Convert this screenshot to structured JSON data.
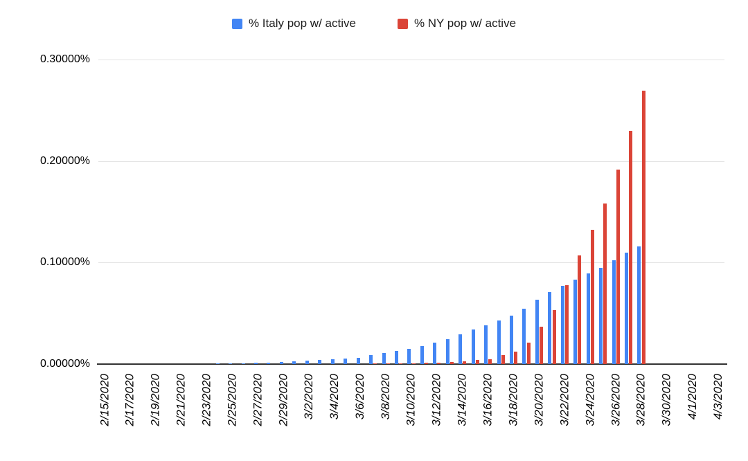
{
  "legend": [
    {
      "label": "% Italy pop w/ active",
      "color": "#4285F4"
    },
    {
      "label": "% NY pop w/ active",
      "color": "#DB4437"
    }
  ],
  "chart_data": {
    "type": "bar",
    "title": "",
    "xlabel": "",
    "ylabel": "",
    "grid": true,
    "legend_position": "top",
    "ylim": [
      0,
      0.3
    ],
    "y_ticks": [
      "0.00000%",
      "0.10000%",
      "0.20000%",
      "0.30000%"
    ],
    "x_label_every": 2,
    "categories": [
      "2/15/2020",
      "2/16/2020",
      "2/17/2020",
      "2/18/2020",
      "2/19/2020",
      "2/20/2020",
      "2/21/2020",
      "2/22/2020",
      "2/23/2020",
      "2/24/2020",
      "2/25/2020",
      "2/26/2020",
      "2/27/2020",
      "2/28/2020",
      "2/29/2020",
      "3/1/2020",
      "3/2/2020",
      "3/3/2020",
      "3/4/2020",
      "3/5/2020",
      "3/6/2020",
      "3/7/2020",
      "3/8/2020",
      "3/9/2020",
      "3/10/2020",
      "3/11/2020",
      "3/12/2020",
      "3/13/2020",
      "3/14/2020",
      "3/15/2020",
      "3/16/2020",
      "3/17/2020",
      "3/18/2020",
      "3/19/2020",
      "3/20/2020",
      "3/21/2020",
      "3/22/2020",
      "3/23/2020",
      "3/24/2020",
      "3/25/2020",
      "3/26/2020",
      "3/27/2020",
      "3/28/2020",
      "3/29/2020",
      "3/30/2020",
      "3/31/2020",
      "4/1/2020",
      "4/2/2020",
      "4/3/2020"
    ],
    "series": [
      {
        "name": "% Italy pop w/ active",
        "color": "#4285F4",
        "values": [
          1e-05,
          1e-05,
          1e-05,
          1e-05,
          1e-05,
          1e-05,
          3e-05,
          0.00013,
          0.00025,
          0.00037,
          0.00051,
          0.00066,
          0.00107,
          0.00146,
          0.00182,
          0.00275,
          0.0033,
          0.00411,
          0.00459,
          0.00577,
          0.00644,
          0.00917,
          0.01095,
          0.01322,
          0.01466,
          0.01751,
          0.02123,
          0.02473,
          0.02935,
          0.03407,
          0.03815,
          0.0431,
          0.04748,
          0.05488,
          0.06374,
          0.07058,
          0.07712,
          0.08337,
          0.08934,
          0.09511,
          0.10254,
          0.10982,
          0.11585,
          null,
          null,
          null,
          null,
          null,
          null
        ]
      },
      {
        "name": "% NY pop w/ active",
        "color": "#DB4437",
        "values": [
          0,
          0,
          0,
          0,
          0,
          0,
          0,
          0,
          0,
          0,
          0,
          0,
          0,
          0,
          0,
          0,
          1e-05,
          1e-05,
          6e-05,
          0.00012,
          0.00023,
          0.00046,
          0.00054,
          0.00073,
          0.0009,
          0.00111,
          0.00169,
          0.00217,
          0.0027,
          0.00376,
          0.00489,
          0.00874,
          0.01225,
          0.02135,
          0.03652,
          0.05325,
          0.078,
          0.10735,
          0.13198,
          0.15843,
          0.19159,
          0.22953,
          0.26904,
          null,
          null,
          null,
          null,
          null,
          null
        ]
      }
    ]
  }
}
